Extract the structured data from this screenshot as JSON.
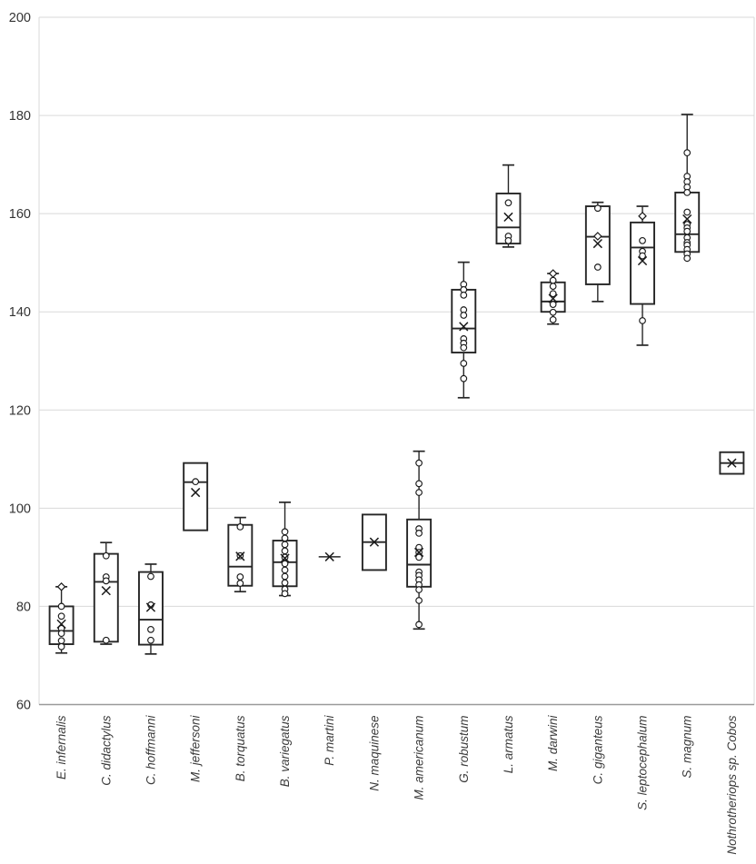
{
  "page": {
    "background": "#ffffff",
    "title": ""
  },
  "style": {
    "grid_color": "#d9d9d9",
    "axis_color": "#9b9b9b",
    "box_stroke": "#262626",
    "marker_stroke": "#1a1a1a",
    "text_color": "#333333",
    "background": "#ffffff"
  },
  "chart_data": {
    "type": "boxplot",
    "title": "",
    "xlabel": "",
    "ylabel": "",
    "ylim": [
      60,
      200
    ],
    "yticks": [
      60,
      80,
      100,
      120,
      140,
      160,
      180,
      200
    ],
    "grid": true,
    "legend": "none",
    "categories": [
      "E. infernalis",
      "C. didactylus",
      "C. hoffmanni",
      "M. jeffersoni",
      "B. torquatus",
      "B. variegatus",
      "P. martini",
      "N. maquinese",
      "M. americanum",
      "G. robustum",
      "L. armatus",
      "M. darwini",
      "C. giganteus",
      "S. leptocephalum",
      "S. magnum",
      "Nothrotheriops sp. Cobos"
    ],
    "series": [
      {
        "name": "E. infernalis",
        "min": 70.5,
        "q1": 72.3,
        "median": 75.0,
        "q3": 80.0,
        "max": 84.0,
        "mean": 76.4,
        "points": [
          80.0,
          78.0,
          75.5,
          74.5,
          73.0,
          71.8
        ],
        "diamonds": [
          84.0
        ]
      },
      {
        "name": "C. didactylus",
        "min": 72.3,
        "q1": 72.8,
        "median": 85.0,
        "q3": 90.7,
        "max": 93.0,
        "mean": 83.2,
        "points": [
          90.3,
          86.0,
          85.2,
          73.1
        ],
        "diamonds": []
      },
      {
        "name": "C. hoffmanni",
        "min": 70.3,
        "q1": 72.2,
        "median": 77.3,
        "q3": 87.0,
        "max": 88.6,
        "mean": 79.8,
        "points": [
          86.1,
          80.3,
          75.3,
          73.1
        ],
        "diamonds": []
      },
      {
        "name": "M. jeffersoni",
        "min": 95.5,
        "q1": 95.5,
        "median": 105.3,
        "q3": 109.2,
        "max": 109.2,
        "mean": 103.2,
        "points": [
          105.4
        ],
        "diamonds": []
      },
      {
        "name": "B. torquatus",
        "min": 83.0,
        "q1": 84.2,
        "median": 88.1,
        "q3": 96.6,
        "max": 98.1,
        "mean": 90.2,
        "points": [
          96.2,
          90.3,
          86.0,
          84.7
        ],
        "diamonds": []
      },
      {
        "name": "B. variegatus",
        "min": 82.2,
        "q1": 84.1,
        "median": 89.0,
        "q3": 93.4,
        "max": 101.2,
        "mean": 89.8,
        "points": [
          95.2,
          93.9,
          92.6,
          91.3,
          90.0,
          88.7,
          87.4,
          86.1,
          84.8,
          83.5,
          82.6
        ],
        "diamonds": []
      },
      {
        "name": "P. martini",
        "min": 90.1,
        "q1": 90.1,
        "median": 90.1,
        "q3": 90.1,
        "max": 90.1,
        "mean": 90.1,
        "points": [],
        "diamonds": []
      },
      {
        "name": "N. maquinese",
        "min": 87.4,
        "q1": 87.4,
        "median": 93.1,
        "q3": 98.7,
        "max": 98.7,
        "mean": 93.1,
        "points": [],
        "diamonds": []
      },
      {
        "name": "M. americanum",
        "min": 75.4,
        "q1": 84.0,
        "median": 88.5,
        "q3": 97.7,
        "max": 111.6,
        "mean": 91.0,
        "points": [
          109.2,
          105.0,
          103.2,
          95.8,
          94.9,
          92.0,
          91.0,
          90.0,
          87.0,
          86.3,
          85.4,
          84.4,
          83.4,
          81.2,
          76.3
        ],
        "diamonds": []
      },
      {
        "name": "G. robustum",
        "min": 122.5,
        "q1": 131.7,
        "median": 136.6,
        "q3": 144.5,
        "max": 150.1,
        "mean": 137.0,
        "points": [
          145.6,
          144.5,
          143.4,
          140.4,
          139.3,
          134.5,
          133.6,
          132.7,
          129.5,
          126.4
        ],
        "diamonds": []
      },
      {
        "name": "L. armatus",
        "min": 153.2,
        "q1": 153.9,
        "median": 157.2,
        "q3": 164.1,
        "max": 169.9,
        "mean": 159.3,
        "points": [
          162.2,
          155.4,
          154.5
        ],
        "diamonds": []
      },
      {
        "name": "M. darwini",
        "min": 137.5,
        "q1": 140.0,
        "median": 142.1,
        "q3": 146.0,
        "max": 147.8,
        "mean": 142.7,
        "points": [
          146.4,
          145.2,
          143.7,
          141.5,
          139.9,
          138.4
        ],
        "diamonds": [
          147.8
        ]
      },
      {
        "name": "C. giganteus",
        "min": 142.1,
        "q1": 145.6,
        "median": 155.3,
        "q3": 161.5,
        "max": 162.3,
        "mean": 153.9,
        "points": [
          161.1,
          149.1
        ],
        "diamonds": [
          155.4
        ]
      },
      {
        "name": "S. leptocephalum",
        "min": 133.2,
        "q1": 141.6,
        "median": 153.1,
        "q3": 158.2,
        "max": 161.5,
        "mean": 150.4,
        "points": [
          154.5,
          152.3,
          151.4,
          138.2
        ],
        "diamonds": [
          159.5
        ]
      },
      {
        "name": "S. magnum",
        "min": 152.2,
        "q1": 152.2,
        "median": 155.8,
        "q3": 164.3,
        "max": 180.2,
        "mean": 158.9,
        "points": [
          172.4,
          167.6,
          166.5,
          165.4,
          164.3,
          160.3,
          157.8,
          157.1,
          156.4,
          155.1,
          154.1,
          153.6,
          152.7,
          151.8,
          150.9
        ],
        "diamonds": []
      },
      {
        "name": "Nothrotheriops sp. Cobos",
        "min": 107.0,
        "q1": 107.0,
        "median": 109.2,
        "q3": 111.4,
        "max": 111.4,
        "mean": 109.2,
        "points": [],
        "diamonds": []
      }
    ]
  }
}
